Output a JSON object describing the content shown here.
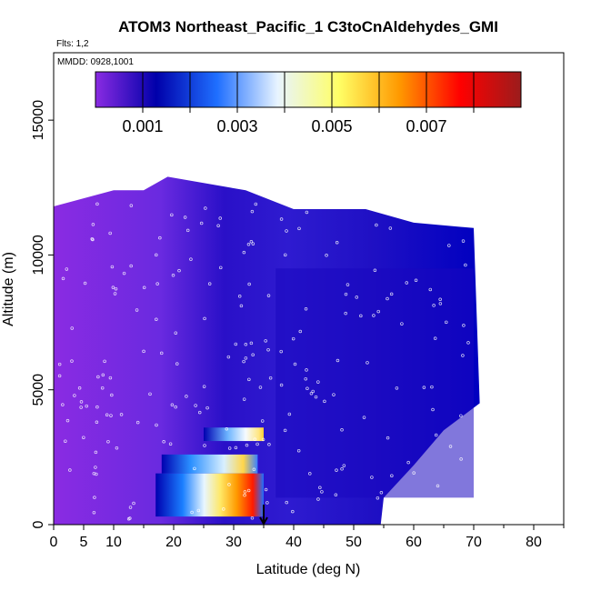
{
  "chart_data": {
    "type": "heatmap",
    "title": "ATOM3 Northeast_Pacific_1 C3toCnAldehydes_GMI",
    "flights_label": "Flts: 1,2",
    "dates_label": "MMDD: 0928,1001",
    "xlabel": "Latitude (deg N)",
    "ylabel": "Altitude (m)",
    "xlim": [
      0,
      85
    ],
    "ylim": [
      0,
      17500
    ],
    "x_ticks": [
      0,
      5,
      10,
      20,
      30,
      40,
      50,
      60,
      70,
      80
    ],
    "y_ticks": [
      0,
      5000,
      10000,
      15000
    ],
    "colorbar": {
      "range": [
        0,
        0.009
      ],
      "labels": [
        "0.001",
        "0.003",
        "0.005",
        "0.007"
      ],
      "label_values": [
        0.001,
        0.003,
        0.005,
        0.007
      ],
      "boundaries": [
        0.001,
        0.002,
        0.003,
        0.004,
        0.005,
        0.006,
        0.007,
        0.008
      ],
      "colors": [
        "#8a2be2",
        "#0000aa",
        "#1f6fff",
        "#e8f4ff",
        "#ffff66",
        "#ff9900",
        "#ff0000",
        "#9b1c1c"
      ]
    },
    "altitude_top_profile": [
      {
        "lat": 0,
        "alt": 11800
      },
      {
        "lat": 10,
        "alt": 12400
      },
      {
        "lat": 15,
        "alt": 12400
      },
      {
        "lat": 19,
        "alt": 12900
      },
      {
        "lat": 32,
        "alt": 12400
      },
      {
        "lat": 40,
        "alt": 11700
      },
      {
        "lat": 52,
        "alt": 11700
      },
      {
        "lat": 60,
        "alt": 11200
      },
      {
        "lat": 70,
        "alt": 11000
      },
      {
        "lat": 71,
        "alt": 4500
      },
      {
        "lat": 65,
        "alt": 3500
      },
      {
        "lat": 60,
        "alt": 2200
      },
      {
        "lat": 55,
        "alt": 1000
      },
      {
        "lat": 54.5,
        "alt": 0
      }
    ],
    "highlights": [
      {
        "lat_min": 17,
        "lat_max": 35,
        "alt_min": 300,
        "alt_max": 1900,
        "peak_lat": 32,
        "peak_value": 0.0078
      },
      {
        "lat_min": 18,
        "lat_max": 34,
        "alt_min": 1900,
        "alt_max": 2600,
        "peak_lat": 30,
        "peak_value": 0.0055
      },
      {
        "lat_min": 25,
        "lat_max": 35,
        "alt_min": 3100,
        "alt_max": 3600,
        "peak_lat": 33,
        "peak_value": 0.0048
      }
    ],
    "marker": {
      "lat": 35,
      "alt": 0,
      "type": "arrow"
    }
  }
}
